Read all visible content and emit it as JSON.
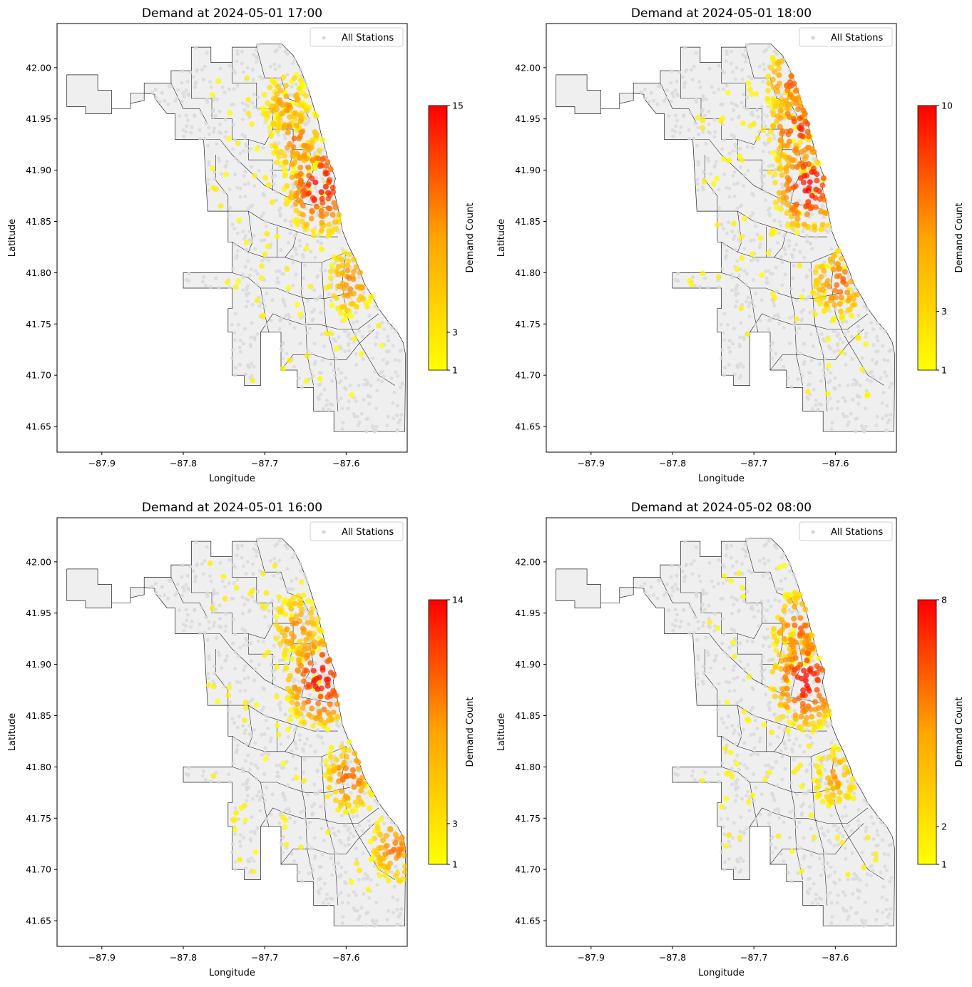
{
  "figure": {
    "panels": [
      {
        "title": "Demand at 2024-05-01 17:00",
        "cbar_max": 15,
        "cbar_ticks": [
          1,
          3,
          15
        ],
        "hotspots": [
          [
            -87.632,
            41.885,
            1.0
          ],
          [
            -87.66,
            41.93,
            0.55
          ],
          [
            -87.675,
            41.965,
            0.4
          ],
          [
            -87.595,
            41.79,
            0.45
          ]
        ]
      },
      {
        "title": "Demand at 2024-05-01 18:00",
        "cbar_max": 10,
        "cbar_ticks": [
          1,
          3,
          10
        ],
        "hotspots": [
          [
            -87.632,
            41.885,
            1.0
          ],
          [
            -87.645,
            41.94,
            0.8
          ],
          [
            -87.655,
            41.985,
            0.55
          ],
          [
            -87.595,
            41.79,
            0.6
          ]
        ]
      },
      {
        "title": "Demand at 2024-05-01 16:00",
        "cbar_max": 14,
        "cbar_ticks": [
          1,
          3,
          14
        ],
        "hotspots": [
          [
            -87.632,
            41.885,
            1.0
          ],
          [
            -87.66,
            41.935,
            0.45
          ],
          [
            -87.595,
            41.79,
            0.55
          ],
          [
            -87.54,
            41.72,
            0.5
          ]
        ]
      },
      {
        "title": "Demand at 2024-05-02 08:00",
        "cbar_max": 8,
        "cbar_ticks": [
          1,
          2,
          8
        ],
        "hotspots": [
          [
            -87.635,
            41.885,
            1.0
          ],
          [
            -87.645,
            41.935,
            0.6
          ],
          [
            -87.6,
            41.79,
            0.35
          ]
        ]
      }
    ],
    "xlabel": "Longitude",
    "ylabel": "Latitude",
    "cbar_label": "Demand Count",
    "legend_label": "All Stations",
    "x_ticks": [
      "−87.9",
      "−87.8",
      "−87.7",
      "−87.6"
    ],
    "y_ticks": [
      "41.65",
      "41.70",
      "41.75",
      "41.80",
      "41.85",
      "41.90",
      "41.95",
      "42.00"
    ],
    "colors": {
      "background_station": "#d9d9d9",
      "city_fill": "#efefef",
      "boundary": "#222222",
      "low": "#ffff00",
      "mid": "#ffa500",
      "high": "#ff0000"
    }
  },
  "chart_data": [
    {
      "type": "scatter",
      "title": "Demand at 2024-05-01 17:00",
      "xlabel": "Longitude",
      "ylabel": "Latitude",
      "xlim": [
        -87.955,
        -87.525
      ],
      "ylim": [
        41.625,
        42.043
      ],
      "colorbar": {
        "label": "Demand Count",
        "range": [
          1,
          15
        ],
        "ticks": [
          1,
          3,
          15
        ]
      },
      "legend": {
        "label": "All Stations",
        "placement": "upper right"
      },
      "grid": false
    },
    {
      "type": "scatter",
      "title": "Demand at 2024-05-01 18:00",
      "xlabel": "Longitude",
      "ylabel": "Latitude",
      "xlim": [
        -87.955,
        -87.525
      ],
      "ylim": [
        41.625,
        42.043
      ],
      "colorbar": {
        "label": "Demand Count",
        "range": [
          1,
          10
        ],
        "ticks": [
          1,
          3,
          10
        ]
      },
      "legend": {
        "label": "All Stations",
        "placement": "upper right"
      },
      "grid": false
    },
    {
      "type": "scatter",
      "title": "Demand at 2024-05-01 16:00",
      "xlabel": "Longitude",
      "ylabel": "Latitude",
      "xlim": [
        -87.955,
        -87.525
      ],
      "ylim": [
        41.625,
        42.043
      ],
      "colorbar": {
        "label": "Demand Count",
        "range": [
          1,
          14
        ],
        "ticks": [
          1,
          3,
          14
        ]
      },
      "legend": {
        "label": "All Stations",
        "placement": "upper right"
      },
      "grid": false
    },
    {
      "type": "scatter",
      "title": "Demand at 2024-05-02 08:00",
      "xlabel": "Longitude",
      "ylabel": "Latitude",
      "xlim": [
        -87.955,
        -87.525
      ],
      "ylim": [
        41.625,
        42.043
      ],
      "colorbar": {
        "label": "Demand Count",
        "range": [
          1,
          8
        ],
        "ticks": [
          1,
          2,
          8
        ]
      },
      "legend": {
        "label": "All Stations",
        "placement": "upper right"
      },
      "grid": false
    }
  ]
}
